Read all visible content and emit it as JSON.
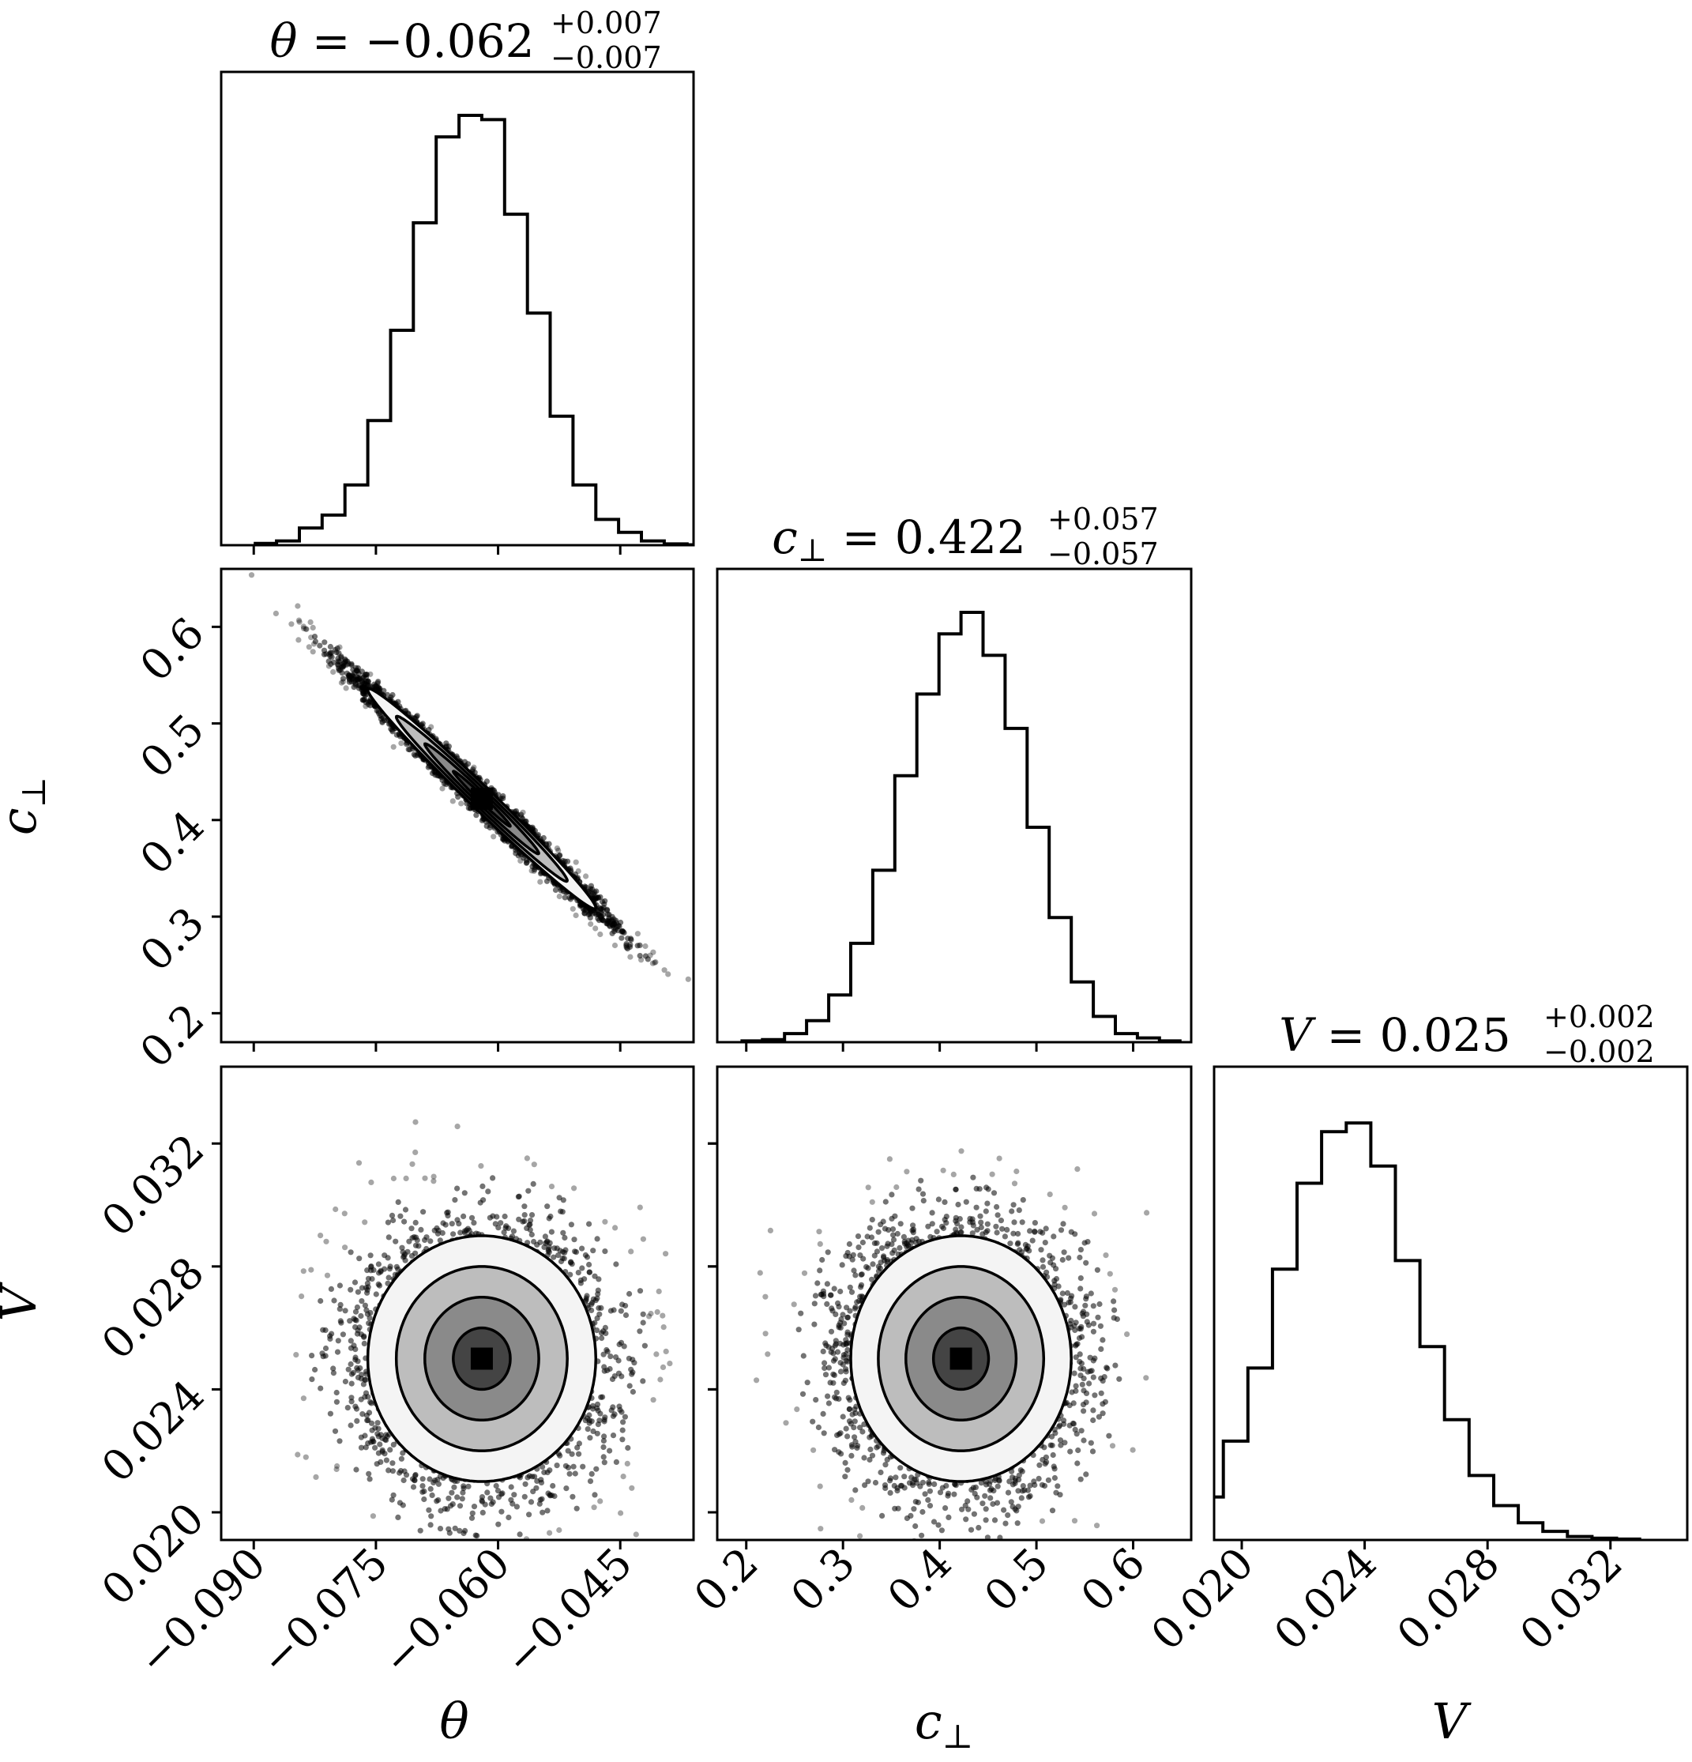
{
  "chart_data": {
    "type": "scatter",
    "subtype": "corner-plot",
    "parameters": [
      {
        "symbol": "θ",
        "subscript": "",
        "axis_label": "θ",
        "title_value": "−0.062",
        "title_plus": "+0.007",
        "title_minus": "−0.007",
        "median": -0.062,
        "sigma": 0.007,
        "range": [
          -0.094,
          -0.036
        ],
        "ticks": [
          -0.09,
          -0.075,
          -0.06,
          -0.045
        ],
        "tick_labels": [
          "−0.090",
          "−0.075",
          "−0.060",
          "−0.045"
        ],
        "hist": [
          0.004,
          0.01,
          0.04,
          0.07,
          0.14,
          0.29,
          0.5,
          0.75,
          0.95,
          1.0,
          0.99,
          0.77,
          0.54,
          0.3,
          0.14,
          0.06,
          0.03,
          0.01,
          0.003,
          0.001
        ]
      },
      {
        "symbol": "c",
        "subscript": "⊥",
        "axis_label": "c⊥",
        "title_value": "0.422",
        "title_plus": "+0.057",
        "title_minus": "−0.057",
        "median": 0.422,
        "sigma": 0.057,
        "range": [
          0.17,
          0.66
        ],
        "ticks": [
          0.2,
          0.3,
          0.4,
          0.5,
          0.6
        ],
        "tick_labels": [
          "0.2",
          "0.3",
          "0.4",
          "0.5",
          "0.6"
        ],
        "hist": [
          0.003,
          0.006,
          0.02,
          0.05,
          0.11,
          0.23,
          0.4,
          0.62,
          0.81,
          0.95,
          1.0,
          0.9,
          0.73,
          0.5,
          0.29,
          0.14,
          0.06,
          0.02,
          0.01,
          0.003
        ]
      },
      {
        "symbol": "V",
        "subscript": "",
        "axis_label": "V",
        "title_value": "0.025",
        "title_plus": "+0.002",
        "title_minus": "−0.002",
        "median": 0.025,
        "sigma": 0.002,
        "range": [
          0.0191,
          0.0345
        ],
        "ticks": [
          0.02,
          0.024,
          0.028,
          0.032
        ],
        "tick_labels": [
          "0.020",
          "0.024",
          "0.028",
          "0.032"
        ],
        "hist": [
          0.01,
          0.03,
          0.1,
          0.23,
          0.4,
          0.63,
          0.83,
          0.95,
          0.97,
          0.87,
          0.65,
          0.45,
          0.28,
          0.15,
          0.08,
          0.04,
          0.02,
          0.008,
          0.004,
          0.002
        ]
      }
    ],
    "correlations": {
      "theta_cperp": -0.99,
      "theta_V": 0.0,
      "cperp_V": 0.0
    },
    "samples": 20000,
    "histogram_bins": 20,
    "contour_levels": [
      0.5,
      1.0,
      1.5,
      2.0
    ],
    "grid": false,
    "legend": "none",
    "colors": {
      "ink": "#000000",
      "background": "#ffffff"
    }
  }
}
